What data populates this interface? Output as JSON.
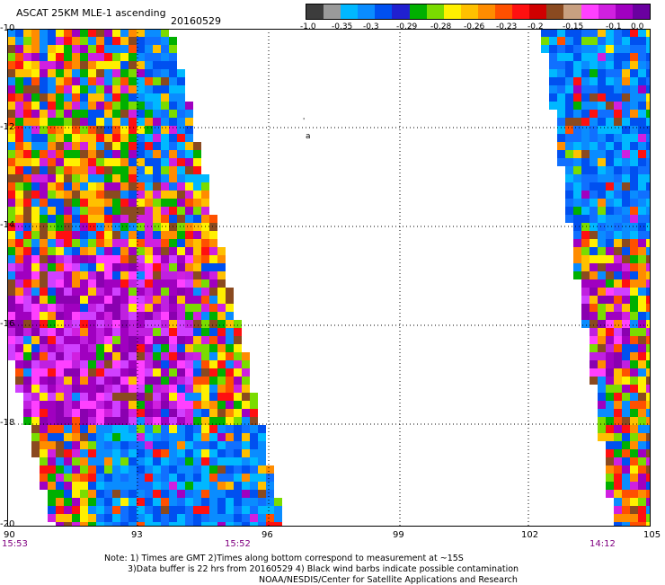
{
  "header": {
    "title": "ASCAT 25KM MLE-1 ascending",
    "date": "20160529"
  },
  "colorbar": {
    "colors": [
      "#3c3c3c",
      "#9a9a9a",
      "#00b8ff",
      "#0a8cff",
      "#0050f0",
      "#2020d0",
      "#00b000",
      "#7adc00",
      "#fff000",
      "#ffc000",
      "#ff8c00",
      "#ff5000",
      "#ff1010",
      "#d00000",
      "#8a4a20",
      "#c8a080",
      "#ff40ff",
      "#d020e0",
      "#a000c0",
      "#6a00a0"
    ],
    "tick_labels": [
      "-1.0",
      "-0.35",
      "-0.3",
      "-0.29",
      "-0.28",
      "-0.26",
      "-0.23",
      "-0.2",
      "-0.15",
      "-0.1",
      "0.0"
    ]
  },
  "map": {
    "x_ticks": [
      "90",
      "93",
      "96",
      "99",
      "102",
      "105"
    ],
    "y_ticks": [
      "-10",
      "-12",
      "-14",
      "-16",
      "-18",
      "-20"
    ],
    "times": [
      "15:53",
      "15:52",
      "14:12"
    ],
    "marker_glyphs": [
      "'",
      "a"
    ]
  },
  "notes": {
    "line1": "Note: 1) Times are GMT 2)Times along bottom correspond to measurement at ~15S",
    "line2": "3)Data buffer is 22 hrs from 20160529 4) Black wind barbs indicate possible contamination",
    "line3": "NOAA/NESDIS/Center for Satellite Applications and Research"
  }
}
